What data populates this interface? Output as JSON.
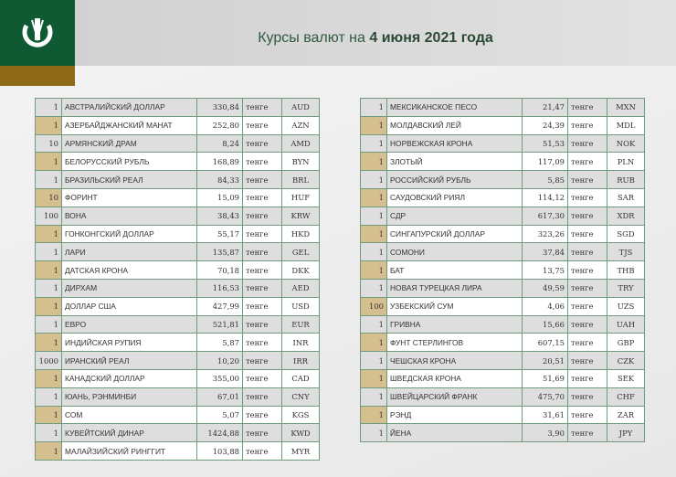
{
  "header": {
    "title_prefix": "Курсы валют на ",
    "title_date": "4 июня 2021 года"
  },
  "colors": {
    "brand_green": "#0f5a32",
    "gold": "#8f6b17",
    "row_accent": "#d6bf8e"
  },
  "tables": [
    {
      "rows": [
        [
          "1",
          "АВСТРАЛИЙСКИЙ ДОЛЛАР",
          "330,84",
          "тенге",
          "AUD"
        ],
        [
          "1",
          "АЗЕРБАЙДЖАНСКИЙ МАНАТ",
          "252,80",
          "тенге",
          "AZN"
        ],
        [
          "10",
          "АРМЯНСКИЙ  ДРАМ",
          "8,24",
          "тенге",
          "AMD"
        ],
        [
          "1",
          "БЕЛОРУССКИЙ РУБЛЬ",
          "168,89",
          "тенге",
          "BYN"
        ],
        [
          "1",
          "БРАЗИЛЬСКИЙ РЕАЛ",
          "84,33",
          "тенге",
          "BRL"
        ],
        [
          "10",
          "ФОРИНТ",
          "15,09",
          "тенге",
          "HUF"
        ],
        [
          "100",
          "ВОНА",
          "38,43",
          "тенге",
          "KRW"
        ],
        [
          "1",
          "ГОНКОНГСКИЙ ДОЛЛАР",
          "55,17",
          "тенге",
          "HKD"
        ],
        [
          "1",
          "ЛАРИ",
          "135,87",
          "тенге",
          "GEL"
        ],
        [
          "1",
          "ДАТСКАЯ КРОНА",
          "70,18",
          "тенге",
          "DKK"
        ],
        [
          "1",
          "ДИРХАМ",
          "116,53",
          "тенге",
          "AED"
        ],
        [
          "1",
          "ДОЛЛАР США",
          "427,99",
          "тенге",
          "USD"
        ],
        [
          "1",
          "ЕВРО",
          "521,81",
          "тенге",
          "EUR"
        ],
        [
          "1",
          "ИНДИЙСКАЯ РУПИЯ",
          "5,87",
          "тенге",
          "INR"
        ],
        [
          "1000",
          "ИРАНСКИЙ РЕАЛ",
          "10,20",
          "тенге",
          "IRR"
        ],
        [
          "1",
          "КАНАДСКИЙ ДОЛЛАР",
          "355,00",
          "тенге",
          "CAD"
        ],
        [
          "1",
          "ЮАНЬ, РЭНМИНБИ",
          "67,01",
          "тенге",
          "CNY"
        ],
        [
          "1",
          "СОМ",
          "5,07",
          "тенге",
          "KGS"
        ],
        [
          "1",
          "КУВЕЙТСКИЙ ДИНАР",
          "1424,88",
          "тенге",
          "KWD"
        ],
        [
          "1",
          "МАЛАЙЗИЙСКИЙ РИНГГИТ",
          "103,88",
          "тенге",
          "MYR"
        ]
      ]
    },
    {
      "rows": [
        [
          "1",
          "МЕКСИКАНСКОЕ ПЕСО",
          "21,47",
          "тенге",
          "MXN"
        ],
        [
          "1",
          "МОЛДАВСКИЙ ЛЕЙ",
          "24,39",
          "тенге",
          "MDL"
        ],
        [
          "1",
          "НОРВЕЖСКАЯ КРОНА",
          "51,53",
          "тенге",
          "NOK"
        ],
        [
          "1",
          "ЗЛОТЫЙ",
          "117,09",
          "тенге",
          "PLN"
        ],
        [
          "1",
          "РОССИЙСКИЙ РУБЛЬ",
          "5,85",
          "тенге",
          "RUB"
        ],
        [
          "1",
          "САУДОВСКИЙ РИЯЛ",
          "114,12",
          "тенге",
          "SAR"
        ],
        [
          "1",
          "СДР",
          "617,30",
          "тенге",
          "XDR"
        ],
        [
          "1",
          "СИНГАПУРСКИЙ ДОЛЛАР",
          "323,26",
          "тенге",
          "SGD"
        ],
        [
          "1",
          "СОМОНИ",
          "37,84",
          "тенге",
          "TJS"
        ],
        [
          "1",
          "БАТ",
          "13,75",
          "тенге",
          "THB"
        ],
        [
          "1",
          "НОВАЯ ТУРЕЦКАЯ ЛИРА",
          "49,59",
          "тенге",
          "TRY"
        ],
        [
          "100",
          "УЗБЕКСКИЙ СУМ",
          "4,06",
          "тенге",
          "UZS"
        ],
        [
          "1",
          "ГРИВНА",
          "15,66",
          "тенге",
          "UAH"
        ],
        [
          "1",
          "ФУНТ СТЕРЛИНГОВ",
          "607,15",
          "тенге",
          "GBP"
        ],
        [
          "1",
          "ЧЕШСКАЯ КРОНА",
          "20,51",
          "тенге",
          "CZK"
        ],
        [
          "1",
          "ШВЕДСКАЯ КРОНА",
          "51,69",
          "тенге",
          "SEK"
        ],
        [
          "1",
          "ШВЕЙЦАРСКИЙ ФРАНК",
          "475,70",
          "тенге",
          "CHF"
        ],
        [
          "1",
          "РЭНД",
          "31,61",
          "тенге",
          "ZAR"
        ],
        [
          "1",
          "ЙЕНА",
          "3,90",
          "тенге",
          "JPY"
        ]
      ]
    }
  ]
}
